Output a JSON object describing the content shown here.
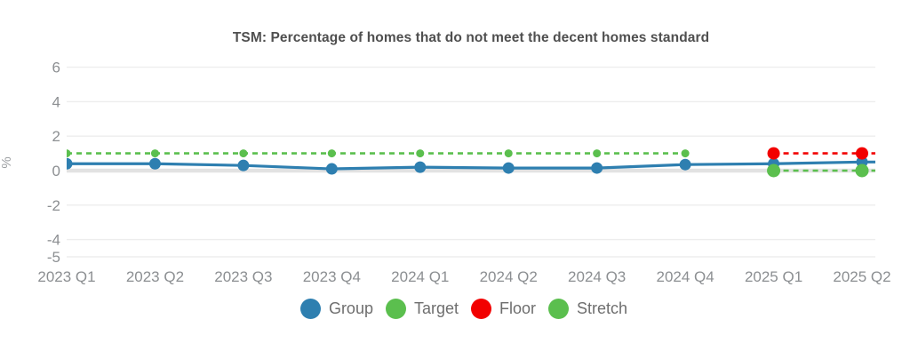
{
  "chart_data": {
    "type": "line",
    "title": "TSM: Percentage of homes that do not meet the decent homes standard",
    "ylabel": "%",
    "categories": [
      "2023 Q1",
      "2023 Q2",
      "2023 Q3",
      "2023 Q4",
      "2024 Q1",
      "2024 Q2",
      "2024 Q3",
      "2024 Q4",
      "2025 Q1",
      "2025 Q2"
    ],
    "yticks": [
      6,
      4,
      2,
      0,
      -2,
      -4,
      -5
    ],
    "ylim": [
      -5,
      6.2
    ],
    "grid": true,
    "legend_position": "bottom",
    "series": [
      {
        "name": "Group",
        "color": "#2e7fb0",
        "line_style": "solid",
        "marker_radius": 6.5,
        "values": [
          0.4,
          0.4,
          0.3,
          0.1,
          0.2,
          0.15,
          0.15,
          0.35,
          0.4,
          0.5
        ]
      },
      {
        "name": "Target",
        "color": "#5bbf4e",
        "line_style": "dashed",
        "marker_radius": 4.5,
        "values": [
          1,
          1,
          1,
          1,
          1,
          1,
          1,
          1,
          null,
          null
        ]
      },
      {
        "name": "Floor",
        "color": "#f20000",
        "line_style": "dashed",
        "marker_radius": 7,
        "values": [
          null,
          null,
          null,
          null,
          null,
          null,
          null,
          null,
          1,
          1
        ]
      },
      {
        "name": "Stretch",
        "color": "#5bbf4e",
        "line_style": "dashed",
        "marker_radius": 7.5,
        "values": [
          null,
          null,
          null,
          null,
          null,
          null,
          null,
          null,
          0,
          0
        ]
      }
    ]
  }
}
